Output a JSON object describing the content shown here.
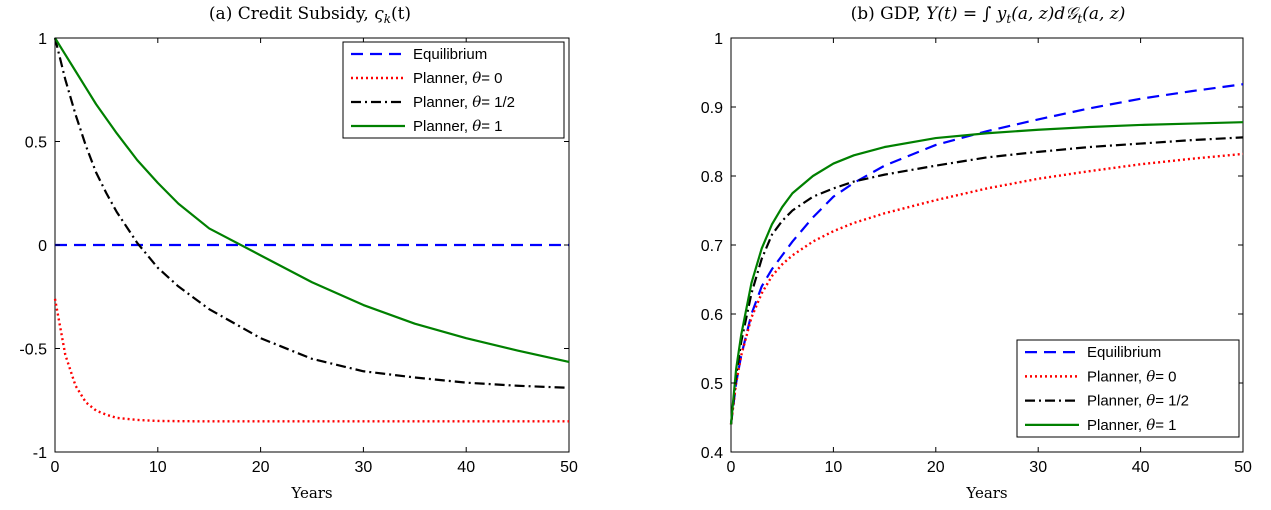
{
  "figure": {
    "panels": [
      {
        "title_prefix": "(a) Credit Subsidy, ",
        "title_math": "ς",
        "title_math_sub": "k",
        "title_suffix": "(t)"
      },
      {
        "title_prefix": "(b) GDP, ",
        "title_math": "Y(t) = ∫ y",
        "title_math_sub": "t",
        "title_suffix": "(a, z)d𝒢",
        "title_math_sub2": "t",
        "title_suffix2": "(a, z)"
      }
    ]
  },
  "chart_data": [
    {
      "type": "line",
      "title": "(a) Credit Subsidy, ςk(t)",
      "xlabel": "Years",
      "ylabel": "",
      "xlim": [
        0,
        50
      ],
      "ylim": [
        -1,
        1
      ],
      "xticks": [
        "0",
        "10",
        "20",
        "30",
        "40",
        "50"
      ],
      "yticks": [
        "1",
        "0.5",
        "0",
        "-0.5",
        "-1"
      ],
      "legend_position": "top-right",
      "grid": false,
      "x": [
        0,
        1,
        2,
        3,
        4,
        5,
        6,
        8,
        10,
        12,
        15,
        20,
        25,
        30,
        35,
        40,
        45,
        50
      ],
      "series": [
        {
          "name": "Equilibrium",
          "label_prefix": "Equilibrium",
          "label_theta": "",
          "color": "#0000ff",
          "dash": "dashed",
          "values": [
            0,
            0,
            0,
            0,
            0,
            0,
            0,
            0,
            0,
            0,
            0,
            0,
            0,
            0,
            0,
            0,
            0,
            0
          ]
        },
        {
          "name": "Planner, θ= 0",
          "label_prefix": "Planner, ",
          "label_theta": "θ= 0",
          "color": "#ff0000",
          "dash": "dotted",
          "values": [
            -0.26,
            -0.53,
            -0.68,
            -0.76,
            -0.8,
            -0.82,
            -0.835,
            -0.845,
            -0.85,
            -0.851,
            -0.852,
            -0.852,
            -0.852,
            -0.852,
            -0.852,
            -0.852,
            -0.852,
            -0.852
          ]
        },
        {
          "name": "Planner, θ= 1/2",
          "label_prefix": "Planner, ",
          "label_theta": "θ= 1/2",
          "color": "#000000",
          "dash": "dashdot",
          "values": [
            1.0,
            0.8,
            0.63,
            0.48,
            0.35,
            0.25,
            0.16,
            0.01,
            -0.11,
            -0.2,
            -0.31,
            -0.45,
            -0.55,
            -0.61,
            -0.64,
            -0.665,
            -0.68,
            -0.69
          ]
        },
        {
          "name": "Planner, θ= 1",
          "label_prefix": "Planner, ",
          "label_theta": "θ= 1",
          "color": "#008000",
          "dash": "solid",
          "values": [
            1.0,
            0.92,
            0.84,
            0.76,
            0.68,
            0.61,
            0.54,
            0.41,
            0.3,
            0.2,
            0.08,
            -0.05,
            -0.18,
            -0.29,
            -0.38,
            -0.45,
            -0.51,
            -0.565
          ]
        }
      ]
    },
    {
      "type": "line",
      "title": "(b) GDP, Y(t) = ∫ yt(a,z)d𝒢t(a,z)",
      "xlabel": "Years",
      "ylabel": "",
      "xlim": [
        0,
        50
      ],
      "ylim": [
        0.4,
        1
      ],
      "xticks": [
        "0",
        "10",
        "20",
        "30",
        "40",
        "50"
      ],
      "yticks": [
        "1",
        "0.9",
        "0.8",
        "0.7",
        "0.6",
        "0.5",
        "0.4"
      ],
      "legend_position": "bottom-right",
      "grid": false,
      "x": [
        0,
        0.5,
        1,
        2,
        3,
        4,
        5,
        6,
        8,
        10,
        12,
        15,
        20,
        25,
        30,
        35,
        40,
        45,
        50
      ],
      "series": [
        {
          "name": "Equilibrium",
          "label_prefix": "Equilibrium",
          "label_theta": "",
          "color": "#0000ff",
          "dash": "dashed",
          "values": [
            0.44,
            0.5,
            0.54,
            0.6,
            0.64,
            0.665,
            0.685,
            0.705,
            0.74,
            0.77,
            0.79,
            0.815,
            0.845,
            0.865,
            0.882,
            0.898,
            0.912,
            0.923,
            0.933
          ]
        },
        {
          "name": "Planner, θ= 0",
          "label_prefix": "Planner, ",
          "label_theta": "θ= 0",
          "color": "#ff0000",
          "dash": "dotted",
          "values": [
            0.44,
            0.5,
            0.54,
            0.595,
            0.63,
            0.655,
            0.672,
            0.685,
            0.705,
            0.72,
            0.732,
            0.746,
            0.765,
            0.782,
            0.796,
            0.807,
            0.817,
            0.825,
            0.832
          ]
        },
        {
          "name": "Planner, θ= 1/2",
          "label_prefix": "Planner, ",
          "label_theta": "θ= 1/2",
          "color": "#000000",
          "dash": "dashdot",
          "values": [
            0.44,
            0.51,
            0.56,
            0.63,
            0.68,
            0.715,
            0.735,
            0.75,
            0.77,
            0.782,
            0.792,
            0.802,
            0.815,
            0.827,
            0.835,
            0.842,
            0.847,
            0.852,
            0.856
          ]
        },
        {
          "name": "Planner, θ= 1",
          "label_prefix": "Planner, ",
          "label_theta": "θ= 1",
          "color": "#008000",
          "dash": "solid",
          "values": [
            0.44,
            0.52,
            0.57,
            0.645,
            0.695,
            0.73,
            0.755,
            0.775,
            0.8,
            0.818,
            0.83,
            0.842,
            0.855,
            0.862,
            0.867,
            0.871,
            0.874,
            0.876,
            0.878
          ]
        }
      ]
    }
  ]
}
